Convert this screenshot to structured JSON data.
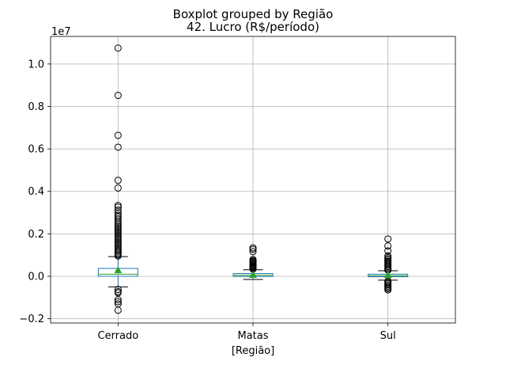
{
  "chart_data": {
    "type": "boxplot",
    "suptitle": "Boxplot grouped by Região",
    "title": "42. Lucro (R$/período)",
    "xlabel": "[Região]",
    "ylabel": "",
    "y_offset_label": "1e7",
    "ylim": [
      -2200000,
      11300000
    ],
    "yticks": [
      -2000000,
      0,
      2000000,
      4000000,
      6000000,
      8000000,
      10000000
    ],
    "ytick_labels": [
      "−0.2",
      "0.0",
      "0.2",
      "0.4",
      "0.6",
      "0.8",
      "1.0"
    ],
    "grid": true,
    "categories": [
      "Cerrado",
      "Matas",
      "Sul"
    ],
    "colors": {
      "box": "#1f77b4",
      "median": "#2ca02c",
      "mean_marker": "#2ca02c",
      "whisker_cap": "#000000",
      "flier": "#000000",
      "grid": "#b0b0b0"
    },
    "groups": [
      {
        "name": "Cerrado",
        "q1": 0,
        "median": 100000,
        "q3": 370000,
        "whisker_low": -500000,
        "whisker_high": 930000,
        "mean": 290000,
        "outliers": [
          10750000,
          8520000,
          6640000,
          6080000,
          4520000,
          4160000,
          3340000,
          3260000,
          3120000,
          2980000,
          2880000,
          2800000,
          2700000,
          2600000,
          2500000,
          2420000,
          2340000,
          2260000,
          2180000,
          2100000,
          2020000,
          1940000,
          1860000,
          1780000,
          1700000,
          1620000,
          1540000,
          1460000,
          1380000,
          1300000,
          1220000,
          1150000,
          1080000,
          1010000,
          960000,
          -620000,
          -720000,
          -780000,
          -1100000,
          -1200000,
          -1300000,
          -1600000
        ]
      },
      {
        "name": "Matas",
        "q1": -10000,
        "median": 50000,
        "q3": 130000,
        "whisker_low": -150000,
        "whisker_high": 310000,
        "mean": 70000,
        "outliers": [
          1340000,
          1270000,
          1160000,
          790000,
          740000,
          700000,
          660000,
          620000,
          580000,
          540000,
          500000,
          460000,
          420000,
          380000,
          340000
        ]
      },
      {
        "name": "Sul",
        "q1": -20000,
        "median": 30000,
        "q3": 100000,
        "whisker_low": -180000,
        "whisker_high": 260000,
        "mean": 60000,
        "outliers": [
          1760000,
          1430000,
          1200000,
          960000,
          880000,
          820000,
          760000,
          700000,
          640000,
          580000,
          520000,
          460000,
          400000,
          340000,
          290000,
          -230000,
          -280000,
          -340000,
          -400000,
          -460000,
          -520000,
          -580000,
          -640000
        ]
      }
    ]
  }
}
